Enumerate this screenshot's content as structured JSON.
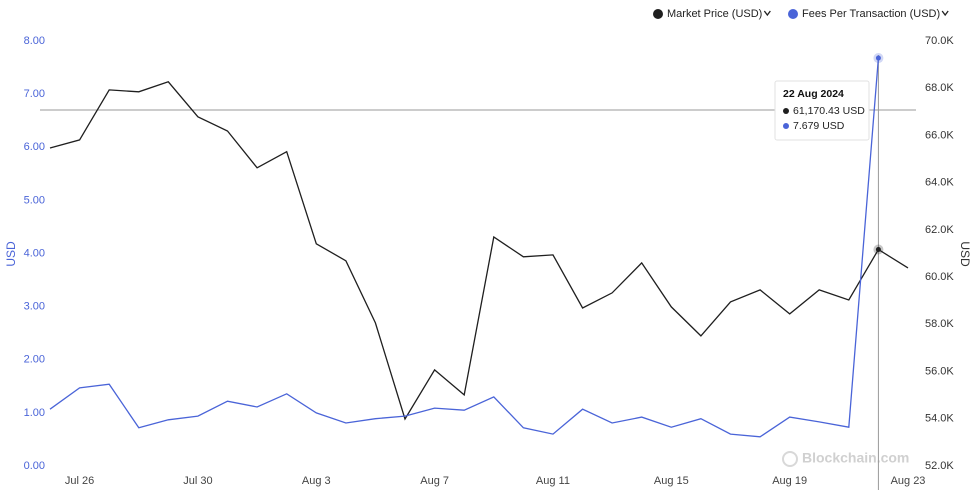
{
  "chart_data": {
    "type": "line",
    "categories": [
      null,
      "Jul 26",
      null,
      null,
      null,
      "Jul 30",
      null,
      null,
      null,
      "Aug 3",
      null,
      null,
      null,
      "Aug 7",
      null,
      null,
      null,
      "Aug 11",
      null,
      null,
      null,
      "Aug 15",
      null,
      null,
      null,
      "Aug 19",
      null,
      null,
      null,
      "Aug 23"
    ],
    "series": [
      {
        "name": "Market Price (USD)",
        "color": "#1f1f1f",
        "axis": "y2",
        "values": [
          65470,
          65810,
          67930,
          67850,
          68270,
          66790,
          66190,
          64630,
          65310,
          61410,
          60690,
          58060,
          53990,
          56070,
          55010,
          61700,
          60860,
          60940,
          58690,
          59330,
          60600,
          58740,
          57510,
          58950,
          59460,
          58440,
          59460,
          59030,
          61170.43,
          60390
        ],
        "value_labels": [
          null,
          null,
          null,
          null,
          null,
          null,
          null,
          null,
          null,
          null,
          null,
          null,
          null,
          null,
          null,
          null,
          null,
          null,
          null,
          null,
          null,
          null,
          null,
          null,
          null,
          null,
          null,
          null,
          "61,170.43 USD",
          null
        ]
      },
      {
        "name": "Fees Per Transaction (USD)",
        "color": "#4a64d8",
        "axis": "y",
        "values": [
          1.07,
          1.47,
          1.54,
          0.72,
          0.87,
          0.94,
          1.22,
          1.11,
          1.36,
          1.0,
          0.81,
          0.89,
          0.94,
          1.09,
          1.05,
          1.3,
          0.72,
          0.6,
          1.07,
          0.81,
          0.92,
          0.73,
          0.89,
          0.6,
          0.55,
          0.92,
          0.83,
          0.73,
          7.679,
          null
        ],
        "value_labels": [
          null,
          null,
          null,
          null,
          null,
          null,
          null,
          null,
          null,
          null,
          null,
          null,
          null,
          null,
          null,
          null,
          null,
          null,
          null,
          null,
          null,
          null,
          null,
          null,
          null,
          null,
          null,
          null,
          "7.679 USD",
          null
        ]
      }
    ],
    "ylabel": "USD",
    "y2label": "USD",
    "ylim": [
      0,
      8
    ],
    "yticks": [
      {
        "value": 0,
        "label": "0.00"
      },
      {
        "value": 1,
        "label": "1.00"
      },
      {
        "value": 2,
        "label": "2.00"
      },
      {
        "value": 3,
        "label": "3.00"
      },
      {
        "value": 4,
        "label": "4.00"
      },
      {
        "value": 5,
        "label": "5.00"
      },
      {
        "value": 6,
        "label": "6.00"
      },
      {
        "value": 7,
        "label": "7.00"
      },
      {
        "value": 8,
        "label": "8.00"
      }
    ],
    "y2lim": [
      52000,
      70000
    ],
    "y2ticks": [
      {
        "value": 52000,
        "label": "52.0K"
      },
      {
        "value": 54000,
        "label": "54.0K"
      },
      {
        "value": 56000,
        "label": "56.0K"
      },
      {
        "value": 58000,
        "label": "58.0K"
      },
      {
        "value": 60000,
        "label": "60.0K"
      },
      {
        "value": 62000,
        "label": "62.0K"
      },
      {
        "value": 64000,
        "label": "64.0K"
      },
      {
        "value": 66000,
        "label": "66.0K"
      },
      {
        "value": 68000,
        "label": "68.0K"
      },
      {
        "value": 70000,
        "label": "70.0K"
      }
    ],
    "tooltip_title": "22 Aug 2024",
    "watermark": "Blockchain.com",
    "grid": false
  }
}
